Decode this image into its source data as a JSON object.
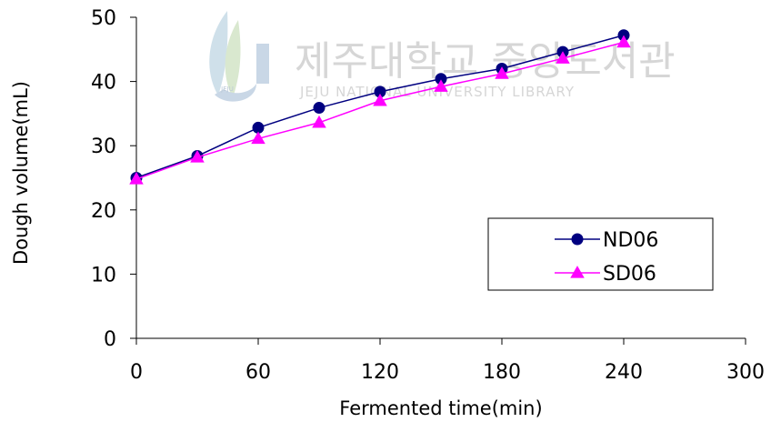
{
  "watermark": {
    "title": "제주대학교 중앙도서관",
    "subtitle": "JEJU NATIONAL UNIVERSITY LIBRARY",
    "logo_text": "JEJU"
  },
  "chart_data": {
    "type": "line",
    "title": "",
    "xlabel": "Fermented time(min)",
    "ylabel": "Dough volume(mL)",
    "xlim": [
      0,
      300
    ],
    "ylim": [
      0,
      50
    ],
    "xticks": [
      0,
      60,
      120,
      180,
      240,
      300
    ],
    "yticks": [
      0,
      10,
      20,
      30,
      40,
      50
    ],
    "grid": false,
    "legend_position": "bottom-right",
    "series": [
      {
        "name": "ND06",
        "color": "#000080",
        "marker": "circle",
        "x": [
          0,
          30,
          60,
          90,
          120,
          150,
          180,
          210,
          240
        ],
        "y": [
          25.0,
          28.4,
          32.8,
          35.9,
          38.4,
          40.4,
          42.0,
          44.6,
          47.2
        ]
      },
      {
        "name": "SD06",
        "color": "#ff00ff",
        "marker": "triangle",
        "x": [
          0,
          30,
          60,
          90,
          120,
          150,
          180,
          210,
          240
        ],
        "y": [
          24.8,
          28.2,
          31.1,
          33.6,
          37.0,
          39.2,
          41.2,
          43.6,
          46.1
        ]
      }
    ]
  }
}
